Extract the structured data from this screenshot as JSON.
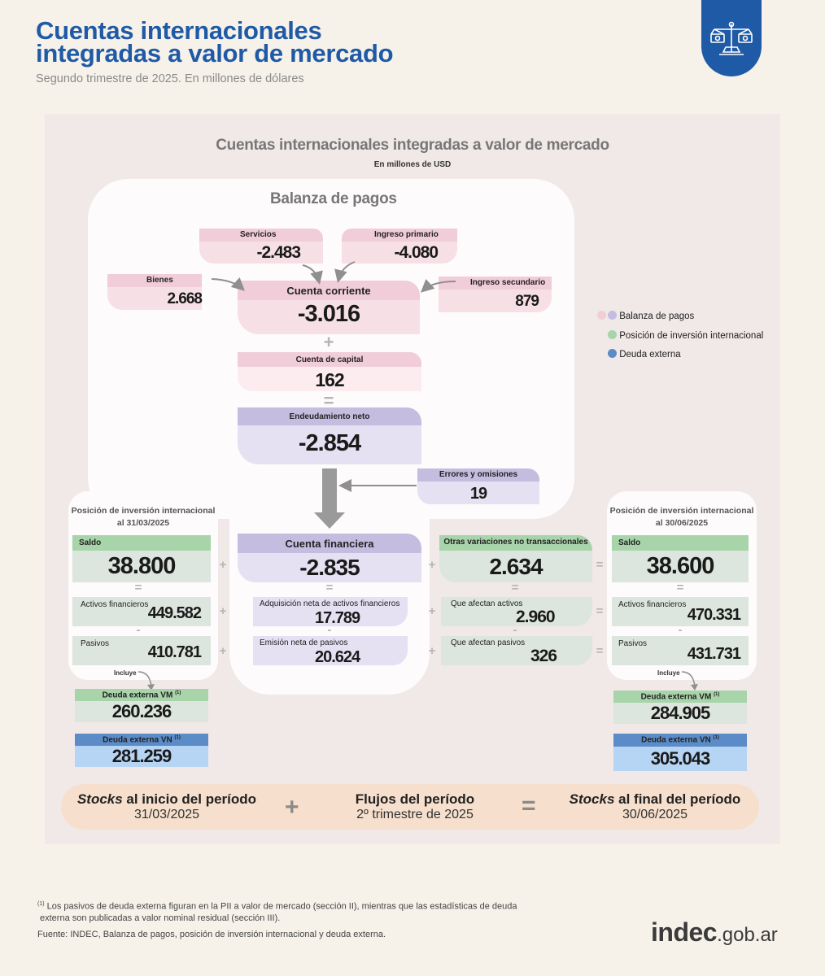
{
  "header": {
    "title_line1": "Cuentas internacionales",
    "title_line2": "integradas a valor de mercado",
    "subtitle": "Segundo trimestre de 2025. En millones de dólares"
  },
  "panel": {
    "title": "Cuentas internacionales integradas a valor de mercado",
    "subtitle": "En millones de USD"
  },
  "balanza": {
    "title": "Balanza de pagos",
    "servicios": {
      "label": "Servicios",
      "value": "-2.483"
    },
    "ingreso_primario": {
      "label": "Ingreso primario",
      "value": "-4.080"
    },
    "bienes": {
      "label": "Bienes",
      "value": "2.668"
    },
    "ingreso_secundario": {
      "label": "Ingreso secundario",
      "value": "879"
    },
    "cuenta_corriente": {
      "label": "Cuenta corriente",
      "value": "-3.016"
    },
    "cuenta_capital": {
      "label": "Cuenta de capital",
      "value": "162"
    },
    "endeudamiento": {
      "label": "Endeudamiento neto",
      "value": "-2.854"
    },
    "errores": {
      "label": "Errores y omisiones",
      "value": "19"
    }
  },
  "pii_inicio": {
    "title_line1": "Posición de inversión internacional",
    "title_line2": "al 31/03/2025",
    "saldo_label": "Saldo",
    "saldo": "38.800",
    "activos_label": "Activos financieros",
    "activos": "449.582",
    "pasivos_label": "Pasivos",
    "pasivos": "410.781",
    "incluye": "Incluye",
    "deuda_vm_label": "Deuda externa VM",
    "deuda_vm": "260.236",
    "deuda_vn_label": "Deuda externa VN",
    "deuda_vn": "281.259",
    "footnote_mark": "(1)"
  },
  "financiera": {
    "label": "Cuenta financiera",
    "value": "-2.835",
    "adq_label": "Adquisición neta de activos financieros",
    "adq": "17.789",
    "emision_label": "Emisión neta de pasivos",
    "emision": "20.624"
  },
  "otras": {
    "label": "Otras variaciones no transaccionales",
    "value": "2.634",
    "activos_label": "Que afectan activos",
    "activos": "2.960",
    "pasivos_label": "Que afectan pasivos",
    "pasivos": "326"
  },
  "pii_final": {
    "title_line1": "Posición de inversión internacional",
    "title_line2": "al 30/06/2025",
    "saldo_label": "Saldo",
    "saldo": "38.600",
    "activos_label": "Activos financieros",
    "activos": "470.331",
    "pasivos_label": "Pasivos",
    "pasivos": "431.731",
    "incluye": "Incluye",
    "deuda_vm_label": "Deuda externa VM",
    "deuda_vm": "284.905",
    "deuda_vn_label": "Deuda externa VN",
    "deuda_vn": "305.043",
    "footnote_mark": "(1)"
  },
  "ops": {
    "plus": "+",
    "equals": "=",
    "minus": "-"
  },
  "legend": [
    {
      "label": "Balanza de pagos"
    },
    {
      "label": "Posición de inversión internacional"
    },
    {
      "label": "Deuda externa"
    }
  ],
  "colors": {
    "blue": "#1f5aa6",
    "pink": "#f0cdd9",
    "lilac": "#c5bde0",
    "green": "#a8d4aa",
    "deuda": "#5c8cc8"
  },
  "bottom": {
    "stocks_word": "Stocks",
    "inicio_rest": " al inicio del período",
    "inicio_date": "31/03/2025",
    "flujos": "Flujos del período",
    "flujos_sub": "2º trimestre de 2025",
    "final_rest": " al final del período",
    "final_date": "30/06/2025"
  },
  "footer": {
    "note_mark": "(1)",
    "note": " Los pasivos de deuda externa figuran en la PII a valor de mercado (sección II), mientras que las estadísticas de deuda",
    "note2": "externa son publicadas a valor nominal residual (sección III).",
    "source": "Fuente: INDEC, Balanza de pagos, posición de inversión internacional y deuda externa.",
    "logo_main": "indec",
    "logo_suffix": ".gob.ar"
  }
}
